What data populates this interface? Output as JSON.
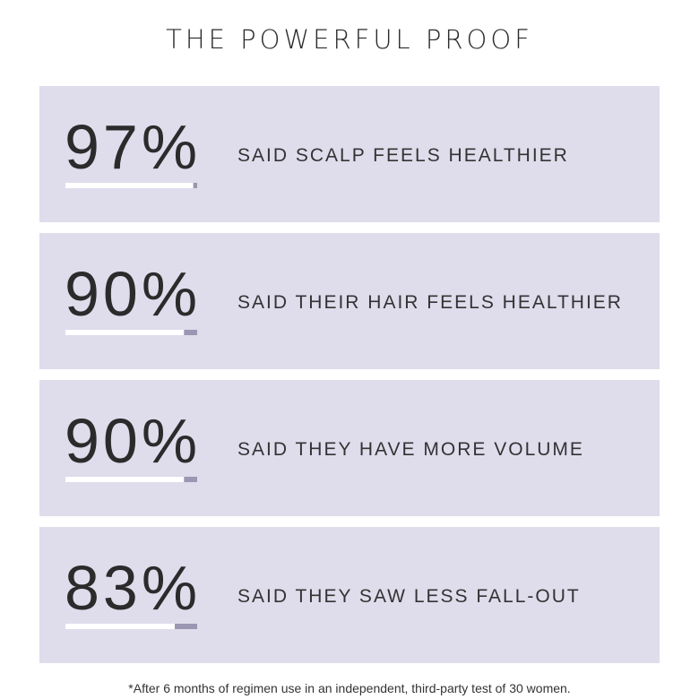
{
  "header": {
    "title": "THE POWERFUL PROOF"
  },
  "stats": [
    {
      "percent": {
        "value": 97,
        "label": "97%"
      },
      "text": "SAID SCALP FEELS HEALTHIER"
    },
    {
      "percent": {
        "value": 90,
        "label": "90%"
      },
      "text": "SAID THEIR HAIR FEELS HEALTHIER"
    },
    {
      "percent": {
        "value": 90,
        "label": "90%"
      },
      "text": "SAID THEY HAVE MORE VOLUME"
    },
    {
      "percent": {
        "value": 83,
        "label": "83%"
      },
      "text": "SAID THEY SAW LESS FALL-OUT"
    }
  ],
  "footnote": "*After 6 months of regimen use in an independent, third-party test of 30 women."
}
